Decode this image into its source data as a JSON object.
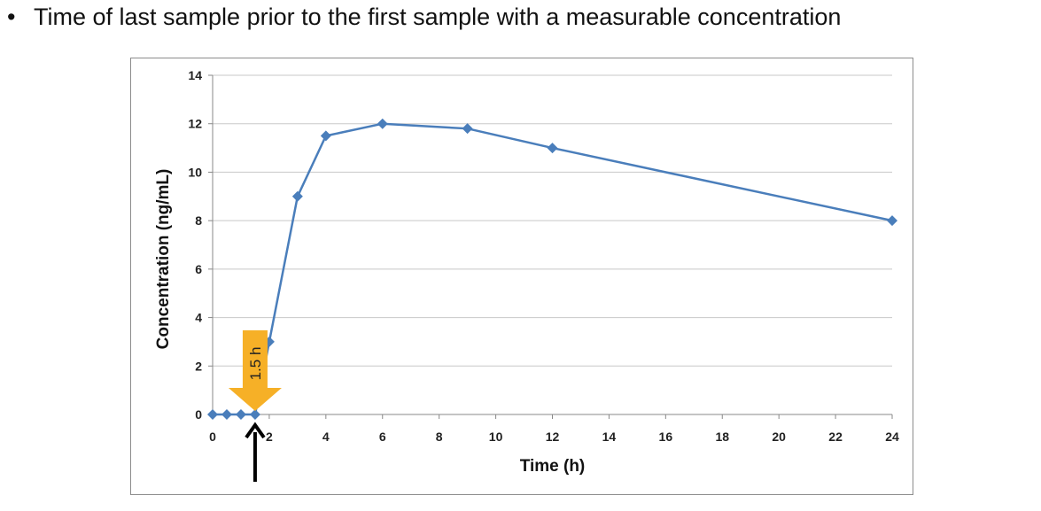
{
  "slide": {
    "bullet": "•",
    "text": "Time of last sample prior to the first sample with a measurable concentration"
  },
  "chart_data": {
    "type": "line",
    "xlabel": "Time (h)",
    "ylabel": "Concentration (ng/mL)",
    "xlim": [
      0,
      24
    ],
    "ylim": [
      0,
      14
    ],
    "x_ticks": [
      0,
      2,
      4,
      6,
      8,
      10,
      12,
      14,
      16,
      18,
      20,
      22,
      24
    ],
    "y_ticks": [
      0,
      2,
      4,
      6,
      8,
      10,
      12,
      14
    ],
    "grid": "horizontal",
    "series": [
      {
        "x": [
          0,
          0.5,
          1,
          1.5,
          2,
          3,
          4,
          6,
          9,
          12,
          24
        ],
        "y": [
          0,
          0,
          0,
          0,
          3,
          9,
          11.5,
          12,
          11.8,
          11,
          8
        ]
      }
    ],
    "annotations": [
      {
        "label": "1.5 h",
        "x": 1.5,
        "style": "orange-down-arrow"
      },
      {
        "label": "",
        "x": 1.5,
        "style": "black-up-arrow"
      }
    ],
    "colors": {
      "line": "#4a7ebb",
      "marker": "#4a7ebb",
      "grid": "#c8c8c8",
      "callout": "#f6b027",
      "pointer": "#000000"
    }
  }
}
